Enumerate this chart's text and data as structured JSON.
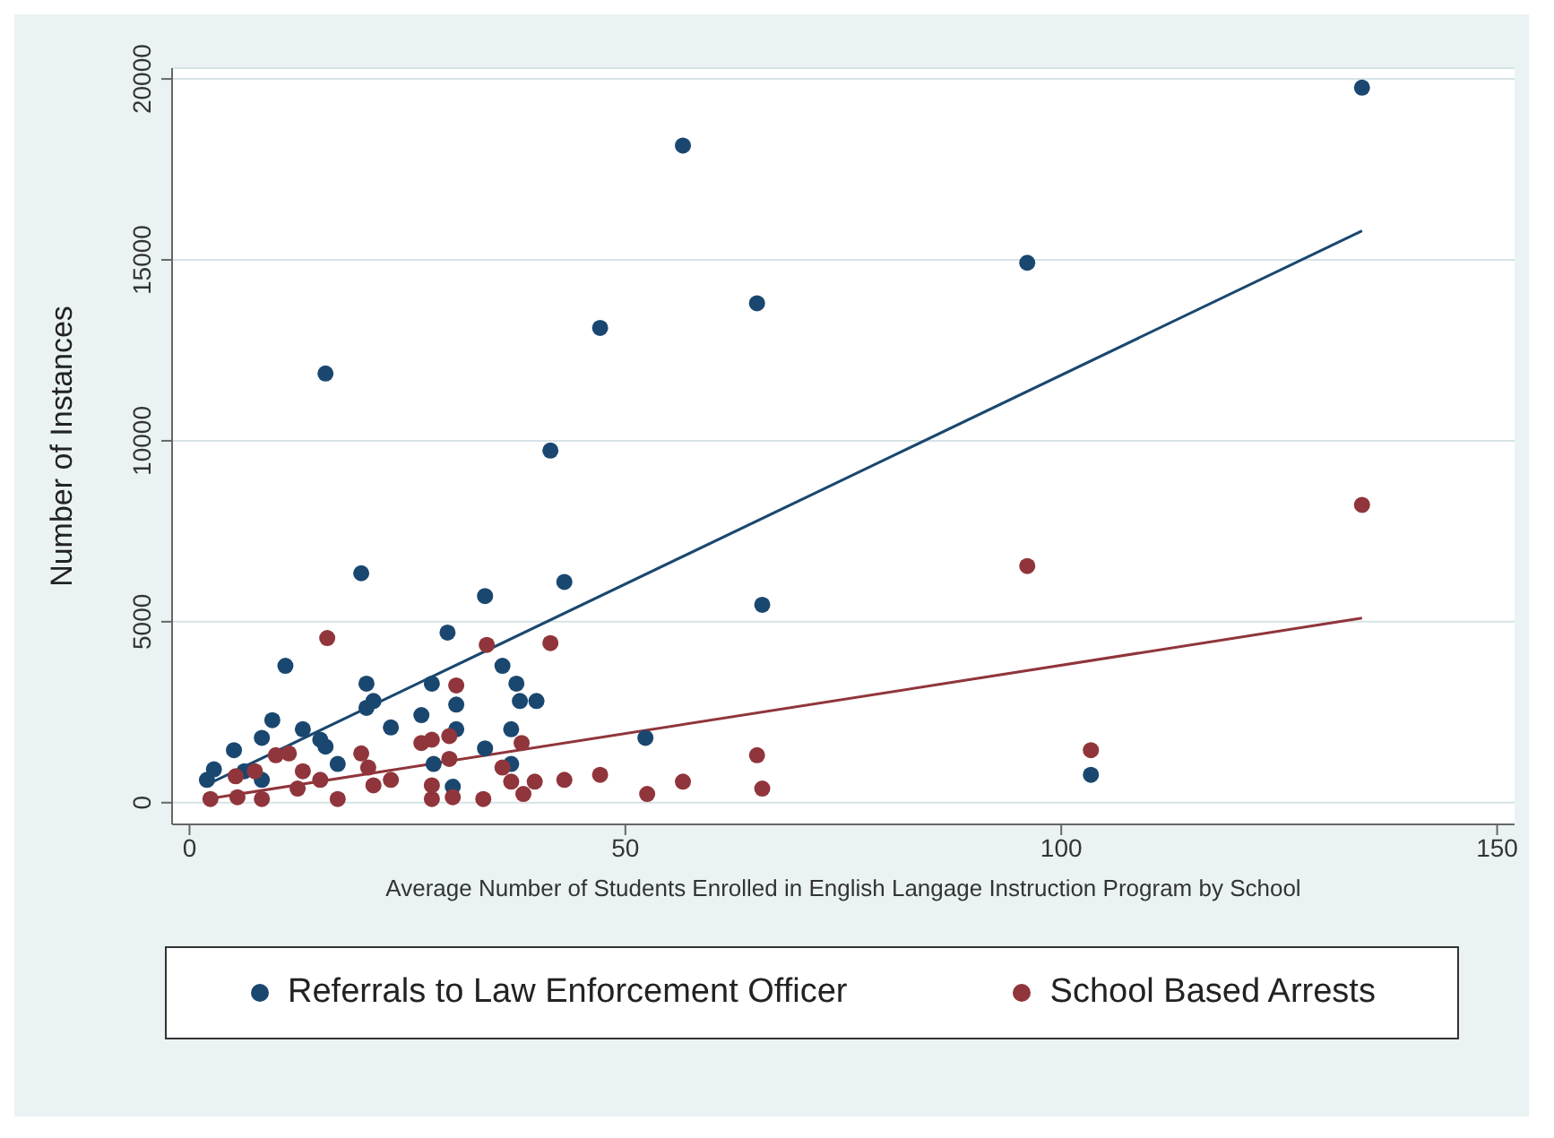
{
  "chart_data": {
    "type": "scatter",
    "xlabel": "Average Number of Students Enrolled in English Langage Instruction Program by School",
    "ylabel": "Number of Instances",
    "xlim": [
      -2,
      152
    ],
    "xticks": [
      0,
      50,
      100,
      150
    ],
    "ylim": [
      -600,
      20300
    ],
    "yticks": [
      0,
      5000,
      10000,
      15000,
      20000
    ],
    "grid": "y",
    "legend": "bottom",
    "marker": "circle",
    "series": [
      {
        "name": "Referrals to Law Enforcement Officer",
        "color": "#1a476f",
        "x": [
          2.0,
          2.8,
          5.1,
          6.3,
          8.3,
          8.3,
          9.5,
          11.0,
          13.0,
          15.0,
          15.6,
          15.6,
          17.0,
          19.7,
          20.3,
          20.3,
          21.1,
          23.1,
          26.6,
          27.8,
          28.0,
          29.6,
          30.2,
          30.6,
          30.6,
          33.9,
          33.9,
          35.9,
          36.9,
          36.9,
          37.5,
          37.9,
          39.8,
          41.4,
          43.0,
          47.1,
          52.3,
          56.6,
          65.1,
          65.7,
          96.1,
          103.4,
          134.5
        ],
        "values": [
          630,
          920,
          1450,
          870,
          630,
          1790,
          2280,
          3780,
          2030,
          1740,
          1550,
          11860,
          1070,
          6340,
          3290,
          2620,
          2810,
          2080,
          2420,
          3290,
          1070,
          4700,
          440,
          2030,
          2710,
          5710,
          1500,
          3780,
          2030,
          1070,
          3290,
          2810,
          2810,
          9730,
          6100,
          13120,
          1790,
          18160,
          13800,
          5470,
          14920,
          770,
          19760
        ]
      },
      {
        "name": "School Based Arrests",
        "color": "#90353b",
        "x": [
          15.8,
          34.1,
          41.4,
          30.6,
          26.6,
          27.8,
          29.8,
          38.1,
          29.8,
          35.9,
          19.7,
          20.5,
          9.9,
          11.4,
          7.5,
          5.3,
          13.0,
          15.0,
          23.1,
          21.1,
          12.4,
          17.0,
          2.4,
          5.5,
          8.3,
          27.8,
          30.2,
          27.8,
          33.7,
          36.9,
          38.3,
          39.6,
          43.0,
          47.1,
          52.5,
          56.6,
          65.1,
          65.7,
          96.1,
          134.5,
          103.4
        ],
        "values": [
          4550,
          4360,
          4410,
          3240,
          1650,
          1740,
          1840,
          1650,
          1210,
          970,
          1360,
          970,
          1310,
          1360,
          870,
          730,
          870,
          630,
          630,
          480,
          390,
          100,
          100,
          150,
          100,
          480,
          150,
          100,
          100,
          580,
          240,
          580,
          630,
          770,
          240,
          580,
          1310,
          390,
          6540,
          8230,
          1450
        ]
      },
      {
        "type": "line",
        "marker": "none",
        "color": "#1a476f",
        "x": [
          2.0,
          134.5
        ],
        "values": [
          500,
          15800
        ]
      },
      {
        "type": "line",
        "marker": "none",
        "color": "#90353b",
        "x": [
          2.0,
          134.5
        ],
        "values": [
          100,
          5100
        ]
      }
    ]
  }
}
